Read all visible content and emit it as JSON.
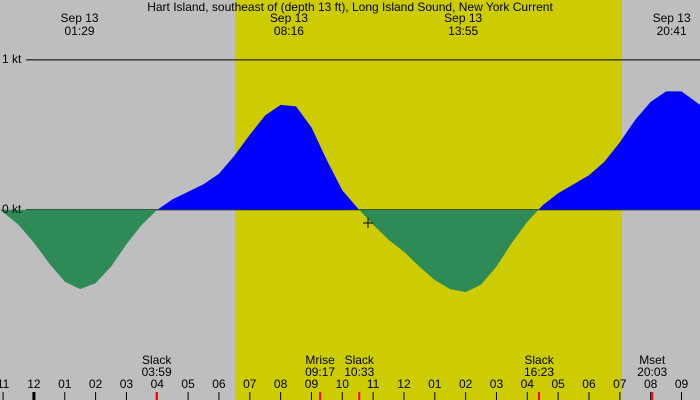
{
  "chart_data": {
    "type": "area",
    "title": "Hart Island, southeast of (depth 13 ft), Long Island Sound, New York Current",
    "x": [
      -1.1,
      -0.5,
      0,
      0.5,
      1,
      1.5,
      2,
      2.5,
      3,
      3.5,
      4,
      4.5,
      5,
      5.5,
      6,
      6.5,
      7,
      7.5,
      8,
      8.5,
      9,
      9.5,
      10,
      10.5,
      11,
      11.5,
      12,
      12.5,
      13,
      13.5,
      14,
      14.5,
      15,
      15.5,
      16,
      16.5,
      17,
      17.5,
      18,
      18.5,
      19,
      19.5,
      20,
      20.5,
      21,
      21.6
    ],
    "values": [
      0,
      -0.1,
      -0.22,
      -0.36,
      -0.48,
      -0.53,
      -0.49,
      -0.38,
      -0.23,
      -0.1,
      0,
      0.07,
      0.12,
      0.17,
      0.24,
      0.36,
      0.5,
      0.63,
      0.7,
      0.69,
      0.55,
      0.33,
      0.13,
      0.01,
      -0.1,
      -0.2,
      -0.28,
      -0.38,
      -0.47,
      -0.53,
      -0.55,
      -0.5,
      -0.38,
      -0.22,
      -0.08,
      0.03,
      0.11,
      0.17,
      0.23,
      0.32,
      0.45,
      0.6,
      0.72,
      0.79,
      0.79,
      0.7
    ],
    "flood_color": "#0000ff",
    "ebb_color": "#2e8b57",
    "daylight": [
      6.53,
      19.07
    ],
    "xlim": [
      -1.1,
      21.6
    ],
    "ylim": [
      -1.27,
      1.4
    ],
    "yticks": [
      {
        "value": 1,
        "label": "1 kt"
      },
      {
        "value": 0,
        "label": "0 kt"
      }
    ],
    "xticks": [
      {
        "value": -1,
        "label": "11"
      },
      {
        "value": 0,
        "label": "12"
      },
      {
        "value": 1,
        "label": "01"
      },
      {
        "value": 2,
        "label": "02"
      },
      {
        "value": 3,
        "label": "03"
      },
      {
        "value": 4,
        "label": "04"
      },
      {
        "value": 5,
        "label": "05"
      },
      {
        "value": 6,
        "label": "06"
      },
      {
        "value": 7,
        "label": "07"
      },
      {
        "value": 8,
        "label": "08"
      },
      {
        "value": 9,
        "label": "09"
      },
      {
        "value": 10,
        "label": "10"
      },
      {
        "value": 11,
        "label": "11"
      },
      {
        "value": 12,
        "label": "12"
      },
      {
        "value": 13,
        "label": "01"
      },
      {
        "value": 14,
        "label": "02"
      },
      {
        "value": 15,
        "label": "03"
      },
      {
        "value": 16,
        "label": "04"
      },
      {
        "value": 17,
        "label": "05"
      },
      {
        "value": 18,
        "label": "06"
      },
      {
        "value": 19,
        "label": "07"
      },
      {
        "value": 20,
        "label": "08"
      },
      {
        "value": 21,
        "label": "09"
      }
    ],
    "peaks": [
      {
        "date": "Sep 13",
        "time": "01:29",
        "x": 1.48
      },
      {
        "date": "Sep 13",
        "time": "08:16",
        "x": 8.27
      },
      {
        "date": "Sep 13",
        "time": "13:55",
        "x": 13.92
      },
      {
        "date": "Sep 13",
        "time": "20:41",
        "x": 20.68
      }
    ],
    "events": [
      {
        "label": "Slack",
        "time": "03:59",
        "x": 3.98
      },
      {
        "label": "Mrise",
        "time": "09:17",
        "x": 9.28
      },
      {
        "label": "Slack",
        "time": "10:33",
        "x": 10.55
      },
      {
        "label": "Slack",
        "time": "16:23",
        "x": 16.38
      },
      {
        "label": "Mset",
        "time": "20:03",
        "x": 20.05
      }
    ]
  }
}
